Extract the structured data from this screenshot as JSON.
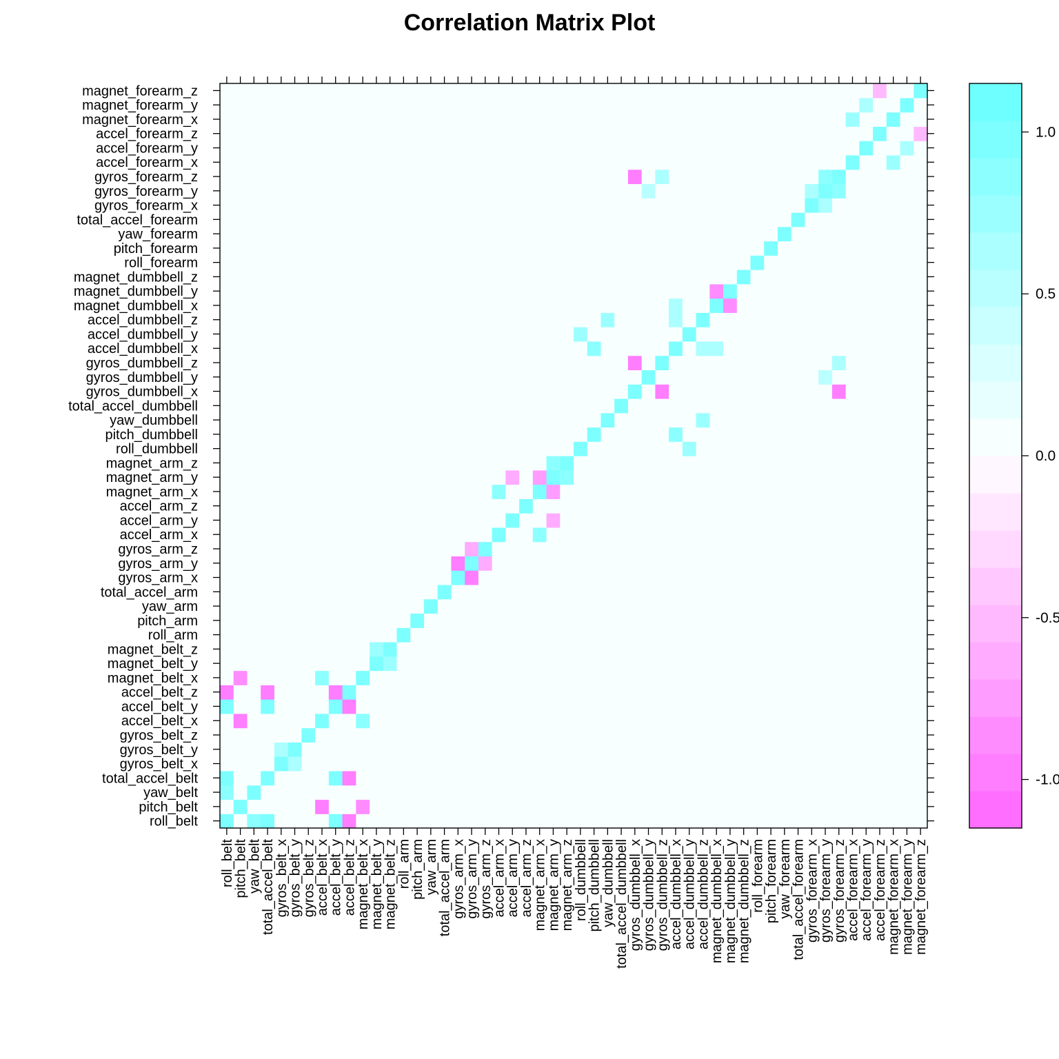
{
  "chart_data": {
    "type": "heatmap",
    "title": "Correlation Matrix Plot",
    "xlabel": "",
    "ylabel": "",
    "variables": [
      "roll_belt",
      "pitch_belt",
      "yaw_belt",
      "total_accel_belt",
      "gyros_belt_x",
      "gyros_belt_y",
      "gyros_belt_z",
      "accel_belt_x",
      "accel_belt_y",
      "accel_belt_z",
      "magnet_belt_x",
      "magnet_belt_y",
      "magnet_belt_z",
      "roll_arm",
      "pitch_arm",
      "yaw_arm",
      "total_accel_arm",
      "gyros_arm_x",
      "gyros_arm_y",
      "gyros_arm_z",
      "accel_arm_x",
      "accel_arm_y",
      "accel_arm_z",
      "magnet_arm_x",
      "magnet_arm_y",
      "magnet_arm_z",
      "roll_dumbbell",
      "pitch_dumbbell",
      "yaw_dumbbell",
      "total_accel_dumbbell",
      "gyros_dumbbell_x",
      "gyros_dumbbell_y",
      "gyros_dumbbell_z",
      "accel_dumbbell_x",
      "accel_dumbbell_y",
      "accel_dumbbell_z",
      "magnet_dumbbell_x",
      "magnet_dumbbell_y",
      "magnet_dumbbell_z",
      "roll_forearm",
      "pitch_forearm",
      "yaw_forearm",
      "total_accel_forearm",
      "gyros_forearm_x",
      "gyros_forearm_y",
      "gyros_forearm_z",
      "accel_forearm_x",
      "accel_forearm_y",
      "accel_forearm_z",
      "magnet_forearm_x",
      "magnet_forearm_y",
      "magnet_forearm_z"
    ],
    "diagonal_value": 1.0,
    "off_diagonal_default": 0.0,
    "notable_correlations": [
      {
        "a": "roll_belt",
        "b": "total_accel_belt",
        "r": 0.98
      },
      {
        "a": "roll_belt",
        "b": "yaw_belt",
        "r": 0.81
      },
      {
        "a": "roll_belt",
        "b": "accel_belt_y",
        "r": 0.92
      },
      {
        "a": "roll_belt",
        "b": "accel_belt_z",
        "r": -0.99
      },
      {
        "a": "pitch_belt",
        "b": "accel_belt_x",
        "r": -0.97
      },
      {
        "a": "pitch_belt",
        "b": "magnet_belt_x",
        "r": -0.88
      },
      {
        "a": "total_accel_belt",
        "b": "accel_belt_z",
        "r": -0.97
      },
      {
        "a": "total_accel_belt",
        "b": "accel_belt_y",
        "r": 0.93
      },
      {
        "a": "accel_belt_y",
        "b": "accel_belt_z",
        "r": -0.93
      },
      {
        "a": "gyros_belt_x",
        "b": "gyros_belt_y",
        "r": 0.6
      },
      {
        "a": "accel_belt_x",
        "b": "magnet_belt_x",
        "r": 0.89
      },
      {
        "a": "magnet_belt_y",
        "b": "magnet_belt_z",
        "r": 0.7
      },
      {
        "a": "gyros_arm_x",
        "b": "gyros_arm_y",
        "r": -0.92
      },
      {
        "a": "gyros_arm_y",
        "b": "gyros_arm_z",
        "r": -0.6
      },
      {
        "a": "accel_arm_x",
        "b": "magnet_arm_x",
        "r": 0.81
      },
      {
        "a": "accel_arm_y",
        "b": "magnet_arm_y",
        "r": -0.6
      },
      {
        "a": "magnet_arm_x",
        "b": "magnet_arm_y",
        "r": -0.78
      },
      {
        "a": "magnet_arm_y",
        "b": "magnet_arm_z",
        "r": 0.81
      },
      {
        "a": "roll_dumbbell",
        "b": "accel_dumbbell_y",
        "r": 0.7
      },
      {
        "a": "pitch_dumbbell",
        "b": "accel_dumbbell_x",
        "r": 0.81
      },
      {
        "a": "yaw_dumbbell",
        "b": "accel_dumbbell_z",
        "r": 0.76
      },
      {
        "a": "gyros_dumbbell_x",
        "b": "gyros_dumbbell_z",
        "r": -0.98
      },
      {
        "a": "gyros_dumbbell_x",
        "b": "gyros_forearm_z",
        "r": -0.93
      },
      {
        "a": "gyros_dumbbell_z",
        "b": "gyros_forearm_z",
        "r": 0.6
      },
      {
        "a": "gyros_dumbbell_y",
        "b": "gyros_forearm_y",
        "r": 0.5
      },
      {
        "a": "accel_dumbbell_x",
        "b": "accel_dumbbell_z",
        "r": 0.6
      },
      {
        "a": "magnet_dumbbell_x",
        "b": "magnet_dumbbell_y",
        "r": -0.82
      },
      {
        "a": "magnet_dumbbell_x",
        "b": "accel_dumbbell_x",
        "r": 0.6
      },
      {
        "a": "gyros_forearm_y",
        "b": "gyros_forearm_z",
        "r": 0.87
      },
      {
        "a": "gyros_forearm_x",
        "b": "gyros_forearm_y",
        "r": 0.6
      },
      {
        "a": "accel_forearm_x",
        "b": "magnet_forearm_x",
        "r": 0.69
      },
      {
        "a": "accel_forearm_y",
        "b": "magnet_forearm_y",
        "r": 0.65
      },
      {
        "a": "accel_forearm_z",
        "b": "magnet_forearm_z",
        "r": -0.5
      }
    ],
    "colorbar": {
      "range": [
        -1.15,
        1.15
      ],
      "ticks": [
        -1.0,
        -0.5,
        0.0,
        0.5,
        1.0
      ],
      "tick_labels": [
        "-1.0",
        "-0.5",
        "0.0",
        "0.5",
        "1.0"
      ],
      "low_color": "#ff66ff",
      "mid_color": "#ffffff",
      "high_color": "#66ffff",
      "levels": 20
    }
  }
}
